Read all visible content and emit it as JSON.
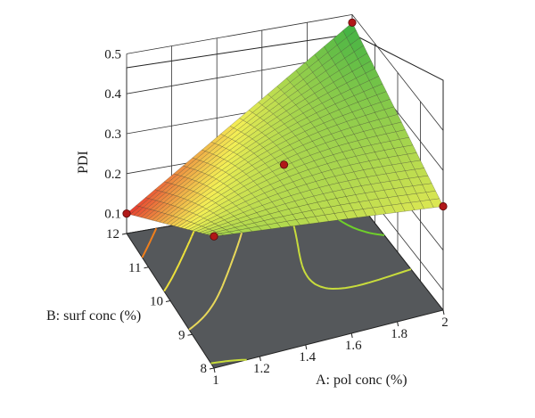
{
  "chart_data": {
    "type": "surface3d",
    "zlabel": "PDI",
    "xlabel": "A: pol conc (%)",
    "ylabel": "B: surf conc (%)",
    "x_ticks": [
      "1",
      "1.2",
      "1.4",
      "1.6",
      "1.8",
      "2"
    ],
    "y_ticks": [
      "8",
      "9",
      "10",
      "11",
      "12"
    ],
    "z_ticks": [
      "0.1",
      "0.2",
      "0.3",
      "0.4",
      "0.5"
    ],
    "xlim": [
      1,
      2
    ],
    "ylim": [
      8,
      12
    ],
    "zlim": [
      0.05,
      0.5
    ],
    "surface_corners": {
      "x1_y8": 0.38,
      "x2_y8": 0.31,
      "x1_y12": 0.1,
      "x2_y12": 0.48
    },
    "design_points": [
      {
        "x": 1,
        "y": 8,
        "z": 0.38
      },
      {
        "x": 2,
        "y": 8,
        "z": 0.31
      },
      {
        "x": 1,
        "y": 12,
        "z": 0.1
      },
      {
        "x": 2,
        "y": 12,
        "z": 0.48
      },
      {
        "x": 1.5,
        "y": 10,
        "z": 0.33
      }
    ],
    "contour_levels": [
      {
        "level": 0.15,
        "color": "#f07f1c"
      },
      {
        "level": 0.22,
        "color": "#ece03a"
      },
      {
        "level": 0.3,
        "color": "#e8d85a"
      },
      {
        "level": 0.37,
        "color": "#c8dc3c"
      },
      {
        "level": 0.42,
        "color": "#6fd02a"
      },
      {
        "level": 0.46,
        "color": "#2fb52a"
      }
    ],
    "colors": {
      "low": "#e8352e",
      "mid": "#f3ef55",
      "high": "#3cb043",
      "floor": "#55585b",
      "point": "#b01818"
    }
  }
}
